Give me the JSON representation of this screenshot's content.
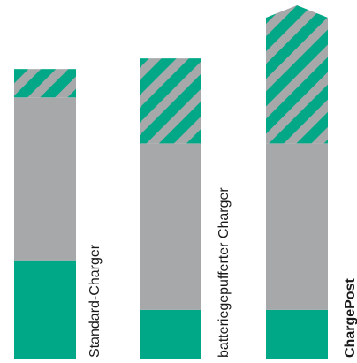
{
  "chart_data": {
    "type": "bar",
    "stacked": true,
    "categories": [
      "Standard-Charger",
      "batteriegepufferter Charger",
      "ChargePost"
    ],
    "emphasized_category": "ChargePost",
    "units": "relative (normalized to tallest bar = 1.0)",
    "series": [
      {
        "values": [
          0.28,
          0.14,
          0.14
        ],
        "color": "#00a887",
        "pattern": "solid"
      },
      {
        "values": [
          0.46,
          0.47,
          0.47
        ],
        "color": "#a6a8aa",
        "pattern": "solid"
      },
      {
        "values": [
          0.08,
          0.24,
          0.39
        ],
        "color": "#00a887",
        "pattern": "diagonal-stripes",
        "pattern_alt_color": "#a6a8aa"
      }
    ],
    "top_shape": [
      "flat",
      "flat",
      "pointed"
    ],
    "ylim": [
      0,
      1
    ],
    "axes_visible": false,
    "grid": false,
    "legend": "none"
  }
}
